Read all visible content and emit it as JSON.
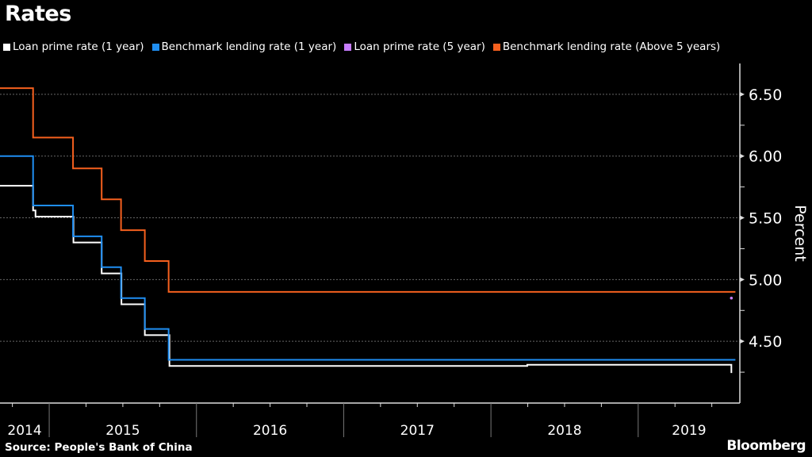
{
  "chart_data": {
    "type": "line",
    "title": "Rates",
    "ylabel": "Percent",
    "ylim": [
      4.0,
      6.75
    ],
    "xlim": [
      "2014-09-01",
      "2019-09-10"
    ],
    "y_ticks": [
      "4.50",
      "5.00",
      "5.50",
      "6.00",
      "6.50"
    ],
    "x_tick_labels": [
      "2014",
      "2015",
      "2016",
      "2017",
      "2018",
      "2019"
    ],
    "grid": "horizontal dotted",
    "legend_placement": "top",
    "step": true,
    "series": [
      {
        "name": "Loan prime rate (1 year)",
        "color": "#ffffff",
        "points": [
          [
            "2014-09-01",
            5.76
          ],
          [
            "2014-11-22",
            5.56
          ],
          [
            "2014-11-28",
            5.51
          ],
          [
            "2015-03-02",
            5.3
          ],
          [
            "2015-05-11",
            5.05
          ],
          [
            "2015-06-29",
            4.8
          ],
          [
            "2015-08-26",
            4.55
          ],
          [
            "2015-10-26",
            4.3
          ],
          [
            "2018-04-01",
            4.31
          ],
          [
            "2019-08-20",
            4.25
          ],
          [
            "2019-08-22",
            4.25
          ]
        ]
      },
      {
        "name": "Benchmark lending rate (1 year)",
        "color": "#1f8ef2",
        "points": [
          [
            "2014-09-01",
            6.0
          ],
          [
            "2014-11-22",
            5.6
          ],
          [
            "2015-03-01",
            5.35
          ],
          [
            "2015-05-11",
            5.1
          ],
          [
            "2015-06-28",
            4.85
          ],
          [
            "2015-08-26",
            4.6
          ],
          [
            "2015-10-24",
            4.35
          ],
          [
            "2019-08-30",
            4.35
          ]
        ]
      },
      {
        "name": "Loan prime rate (5 year)",
        "color": "#c77dff",
        "points": [
          [
            "2019-08-20",
            4.85
          ]
        ]
      },
      {
        "name": "Benchmark lending rate (Above 5 years)",
        "color": "#f5601e",
        "points": [
          [
            "2014-09-01",
            6.55
          ],
          [
            "2014-11-22",
            6.15
          ],
          [
            "2015-03-01",
            5.9
          ],
          [
            "2015-05-11",
            5.65
          ],
          [
            "2015-06-28",
            5.4
          ],
          [
            "2015-08-26",
            5.15
          ],
          [
            "2015-10-24",
            4.9
          ],
          [
            "2019-08-30",
            4.9
          ]
        ]
      }
    ]
  },
  "footer": {
    "source": "Source: People's Bank of China",
    "brand": "Bloomberg"
  }
}
